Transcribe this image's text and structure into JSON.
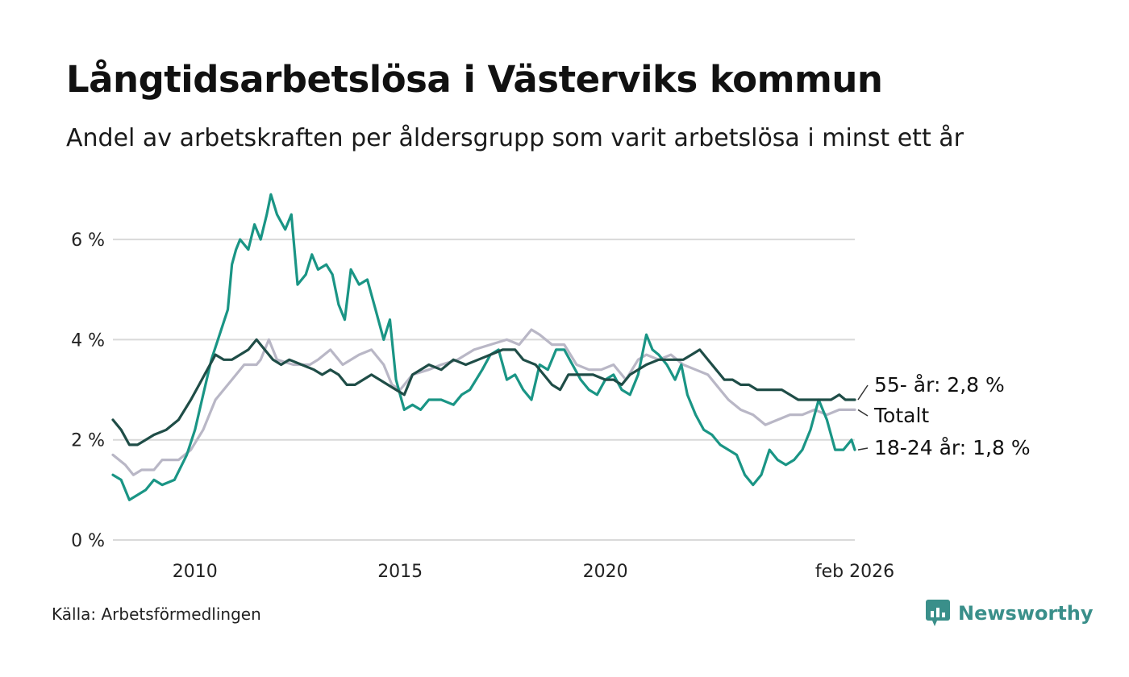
{
  "header": {
    "title": "Långtidsarbetslösa i Västerviks kommun",
    "subtitle": "Andel av arbetskraften per åldersgrupp som varit arbetslösa i minst ett år"
  },
  "footer": {
    "source": "Källa: Arbetsförmedlingen",
    "brand": "Newsworthy",
    "brand_icon": "bar-chart-logo-icon"
  },
  "colors": {
    "youth": "#1a9585",
    "senior": "#1f4d47",
    "total": "#b9b7c6",
    "grid": "#d9d9d9",
    "brand": "#3a8f8a"
  },
  "chart_data": {
    "type": "line",
    "title": "Långtidsarbetslösa i Västerviks kommun",
    "xlabel": "",
    "ylabel": "",
    "ylim": [
      0,
      7
    ],
    "xlim": [
      2008.0,
      2026.08
    ],
    "y_ticks": [
      0,
      2,
      4,
      6
    ],
    "y_tick_labels": [
      "0 %",
      "2 %",
      "4 %",
      "6 %"
    ],
    "x_ticks": [
      2010,
      2015,
      2020,
      2026.08
    ],
    "x_tick_labels": [
      "2010",
      "2015",
      "2020",
      "feb 2026"
    ],
    "grid": true,
    "series": [
      {
        "name": "Totalt",
        "label": "Totalt",
        "color_key": "total",
        "points": [
          [
            2008.0,
            1.7
          ],
          [
            2008.3,
            1.5
          ],
          [
            2008.5,
            1.3
          ],
          [
            2008.7,
            1.4
          ],
          [
            2009.0,
            1.4
          ],
          [
            2009.2,
            1.6
          ],
          [
            2009.6,
            1.6
          ],
          [
            2009.9,
            1.8
          ],
          [
            2010.2,
            2.2
          ],
          [
            2010.5,
            2.8
          ],
          [
            2010.9,
            3.2
          ],
          [
            2011.2,
            3.5
          ],
          [
            2011.5,
            3.5
          ],
          [
            2011.6,
            3.6
          ],
          [
            2011.8,
            4.0
          ],
          [
            2012.0,
            3.6
          ],
          [
            2012.4,
            3.5
          ],
          [
            2012.8,
            3.5
          ],
          [
            2013.0,
            3.6
          ],
          [
            2013.3,
            3.8
          ],
          [
            2013.6,
            3.5
          ],
          [
            2014.0,
            3.7
          ],
          [
            2014.3,
            3.8
          ],
          [
            2014.6,
            3.5
          ],
          [
            2014.8,
            3.1
          ],
          [
            2015.0,
            3.0
          ],
          [
            2015.3,
            3.3
          ],
          [
            2015.7,
            3.4
          ],
          [
            2016.0,
            3.5
          ],
          [
            2016.4,
            3.6
          ],
          [
            2016.8,
            3.8
          ],
          [
            2017.2,
            3.9
          ],
          [
            2017.6,
            4.0
          ],
          [
            2017.9,
            3.9
          ],
          [
            2018.2,
            4.2
          ],
          [
            2018.4,
            4.1
          ],
          [
            2018.7,
            3.9
          ],
          [
            2019.0,
            3.9
          ],
          [
            2019.3,
            3.5
          ],
          [
            2019.6,
            3.4
          ],
          [
            2019.9,
            3.4
          ],
          [
            2020.2,
            3.5
          ],
          [
            2020.5,
            3.2
          ],
          [
            2020.8,
            3.6
          ],
          [
            2021.0,
            3.7
          ],
          [
            2021.3,
            3.6
          ],
          [
            2021.6,
            3.7
          ],
          [
            2021.9,
            3.5
          ],
          [
            2022.2,
            3.4
          ],
          [
            2022.5,
            3.3
          ],
          [
            2022.8,
            3.0
          ],
          [
            2023.0,
            2.8
          ],
          [
            2023.3,
            2.6
          ],
          [
            2023.6,
            2.5
          ],
          [
            2023.9,
            2.3
          ],
          [
            2024.2,
            2.4
          ],
          [
            2024.5,
            2.5
          ],
          [
            2024.8,
            2.5
          ],
          [
            2025.1,
            2.6
          ],
          [
            2025.4,
            2.5
          ],
          [
            2025.7,
            2.6
          ],
          [
            2026.0,
            2.6
          ],
          [
            2026.08,
            2.6
          ]
        ]
      },
      {
        "name": "18-24 år",
        "label": "18-24 år: 1,8 %",
        "color_key": "youth",
        "points": [
          [
            2008.0,
            1.3
          ],
          [
            2008.2,
            1.2
          ],
          [
            2008.4,
            0.8
          ],
          [
            2008.6,
            0.9
          ],
          [
            2008.8,
            1.0
          ],
          [
            2009.0,
            1.2
          ],
          [
            2009.2,
            1.1
          ],
          [
            2009.5,
            1.2
          ],
          [
            2009.8,
            1.7
          ],
          [
            2010.0,
            2.2
          ],
          [
            2010.2,
            2.9
          ],
          [
            2010.4,
            3.6
          ],
          [
            2010.6,
            4.1
          ],
          [
            2010.8,
            4.6
          ],
          [
            2010.9,
            5.5
          ],
          [
            2011.0,
            5.8
          ],
          [
            2011.1,
            6.0
          ],
          [
            2011.3,
            5.8
          ],
          [
            2011.45,
            6.3
          ],
          [
            2011.6,
            6.0
          ],
          [
            2011.75,
            6.5
          ],
          [
            2011.85,
            6.9
          ],
          [
            2012.0,
            6.5
          ],
          [
            2012.2,
            6.2
          ],
          [
            2012.35,
            6.5
          ],
          [
            2012.5,
            5.1
          ],
          [
            2012.7,
            5.3
          ],
          [
            2012.85,
            5.7
          ],
          [
            2013.0,
            5.4
          ],
          [
            2013.2,
            5.5
          ],
          [
            2013.35,
            5.3
          ],
          [
            2013.5,
            4.7
          ],
          [
            2013.65,
            4.4
          ],
          [
            2013.8,
            5.4
          ],
          [
            2014.0,
            5.1
          ],
          [
            2014.2,
            5.2
          ],
          [
            2014.4,
            4.6
          ],
          [
            2014.6,
            4.0
          ],
          [
            2014.75,
            4.4
          ],
          [
            2014.9,
            3.2
          ],
          [
            2015.1,
            2.6
          ],
          [
            2015.3,
            2.7
          ],
          [
            2015.5,
            2.6
          ],
          [
            2015.7,
            2.8
          ],
          [
            2016.0,
            2.8
          ],
          [
            2016.3,
            2.7
          ],
          [
            2016.5,
            2.9
          ],
          [
            2016.7,
            3.0
          ],
          [
            2017.0,
            3.4
          ],
          [
            2017.2,
            3.7
          ],
          [
            2017.4,
            3.8
          ],
          [
            2017.6,
            3.2
          ],
          [
            2017.8,
            3.3
          ],
          [
            2018.0,
            3.0
          ],
          [
            2018.2,
            2.8
          ],
          [
            2018.4,
            3.5
          ],
          [
            2018.6,
            3.4
          ],
          [
            2018.8,
            3.8
          ],
          [
            2019.0,
            3.8
          ],
          [
            2019.2,
            3.5
          ],
          [
            2019.4,
            3.2
          ],
          [
            2019.6,
            3.0
          ],
          [
            2019.8,
            2.9
          ],
          [
            2020.0,
            3.2
          ],
          [
            2020.2,
            3.3
          ],
          [
            2020.4,
            3.0
          ],
          [
            2020.6,
            2.9
          ],
          [
            2020.8,
            3.3
          ],
          [
            2021.0,
            4.1
          ],
          [
            2021.15,
            3.8
          ],
          [
            2021.3,
            3.7
          ],
          [
            2021.5,
            3.5
          ],
          [
            2021.7,
            3.2
          ],
          [
            2021.85,
            3.5
          ],
          [
            2022.0,
            2.9
          ],
          [
            2022.2,
            2.5
          ],
          [
            2022.4,
            2.2
          ],
          [
            2022.6,
            2.1
          ],
          [
            2022.8,
            1.9
          ],
          [
            2023.0,
            1.8
          ],
          [
            2023.2,
            1.7
          ],
          [
            2023.4,
            1.3
          ],
          [
            2023.6,
            1.1
          ],
          [
            2023.8,
            1.3
          ],
          [
            2024.0,
            1.8
          ],
          [
            2024.2,
            1.6
          ],
          [
            2024.4,
            1.5
          ],
          [
            2024.6,
            1.6
          ],
          [
            2024.8,
            1.8
          ],
          [
            2025.0,
            2.2
          ],
          [
            2025.2,
            2.8
          ],
          [
            2025.4,
            2.4
          ],
          [
            2025.6,
            1.8
          ],
          [
            2025.8,
            1.8
          ],
          [
            2026.0,
            2.0
          ],
          [
            2026.08,
            1.8
          ]
        ]
      },
      {
        "name": "55- år",
        "label": "55- år: 2,8 %",
        "color_key": "senior",
        "points": [
          [
            2008.0,
            2.4
          ],
          [
            2008.2,
            2.2
          ],
          [
            2008.4,
            1.9
          ],
          [
            2008.6,
            1.9
          ],
          [
            2008.8,
            2.0
          ],
          [
            2009.0,
            2.1
          ],
          [
            2009.3,
            2.2
          ],
          [
            2009.6,
            2.4
          ],
          [
            2009.9,
            2.8
          ],
          [
            2010.1,
            3.1
          ],
          [
            2010.3,
            3.4
          ],
          [
            2010.5,
            3.7
          ],
          [
            2010.7,
            3.6
          ],
          [
            2010.9,
            3.6
          ],
          [
            2011.1,
            3.7
          ],
          [
            2011.3,
            3.8
          ],
          [
            2011.5,
            4.0
          ],
          [
            2011.7,
            3.8
          ],
          [
            2011.9,
            3.6
          ],
          [
            2012.1,
            3.5
          ],
          [
            2012.3,
            3.6
          ],
          [
            2012.6,
            3.5
          ],
          [
            2012.9,
            3.4
          ],
          [
            2013.1,
            3.3
          ],
          [
            2013.3,
            3.4
          ],
          [
            2013.5,
            3.3
          ],
          [
            2013.7,
            3.1
          ],
          [
            2013.9,
            3.1
          ],
          [
            2014.1,
            3.2
          ],
          [
            2014.3,
            3.3
          ],
          [
            2014.5,
            3.2
          ],
          [
            2014.7,
            3.1
          ],
          [
            2014.9,
            3.0
          ],
          [
            2015.1,
            2.9
          ],
          [
            2015.3,
            3.3
          ],
          [
            2015.5,
            3.4
          ],
          [
            2015.7,
            3.5
          ],
          [
            2016.0,
            3.4
          ],
          [
            2016.3,
            3.6
          ],
          [
            2016.6,
            3.5
          ],
          [
            2016.9,
            3.6
          ],
          [
            2017.2,
            3.7
          ],
          [
            2017.5,
            3.8
          ],
          [
            2017.8,
            3.8
          ],
          [
            2018.0,
            3.6
          ],
          [
            2018.3,
            3.5
          ],
          [
            2018.5,
            3.3
          ],
          [
            2018.7,
            3.1
          ],
          [
            2018.9,
            3.0
          ],
          [
            2019.1,
            3.3
          ],
          [
            2019.4,
            3.3
          ],
          [
            2019.7,
            3.3
          ],
          [
            2020.0,
            3.2
          ],
          [
            2020.2,
            3.2
          ],
          [
            2020.4,
            3.1
          ],
          [
            2020.6,
            3.3
          ],
          [
            2020.8,
            3.4
          ],
          [
            2021.0,
            3.5
          ],
          [
            2021.3,
            3.6
          ],
          [
            2021.6,
            3.6
          ],
          [
            2021.9,
            3.6
          ],
          [
            2022.1,
            3.7
          ],
          [
            2022.3,
            3.8
          ],
          [
            2022.5,
            3.6
          ],
          [
            2022.7,
            3.4
          ],
          [
            2022.9,
            3.2
          ],
          [
            2023.1,
            3.2
          ],
          [
            2023.3,
            3.1
          ],
          [
            2023.5,
            3.1
          ],
          [
            2023.7,
            3.0
          ],
          [
            2023.9,
            3.0
          ],
          [
            2024.1,
            3.0
          ],
          [
            2024.3,
            3.0
          ],
          [
            2024.5,
            2.9
          ],
          [
            2024.7,
            2.8
          ],
          [
            2024.9,
            2.8
          ],
          [
            2025.1,
            2.8
          ],
          [
            2025.3,
            2.8
          ],
          [
            2025.5,
            2.8
          ],
          [
            2025.7,
            2.9
          ],
          [
            2025.85,
            2.8
          ],
          [
            2026.0,
            2.8
          ],
          [
            2026.08,
            2.8
          ]
        ]
      }
    ]
  }
}
